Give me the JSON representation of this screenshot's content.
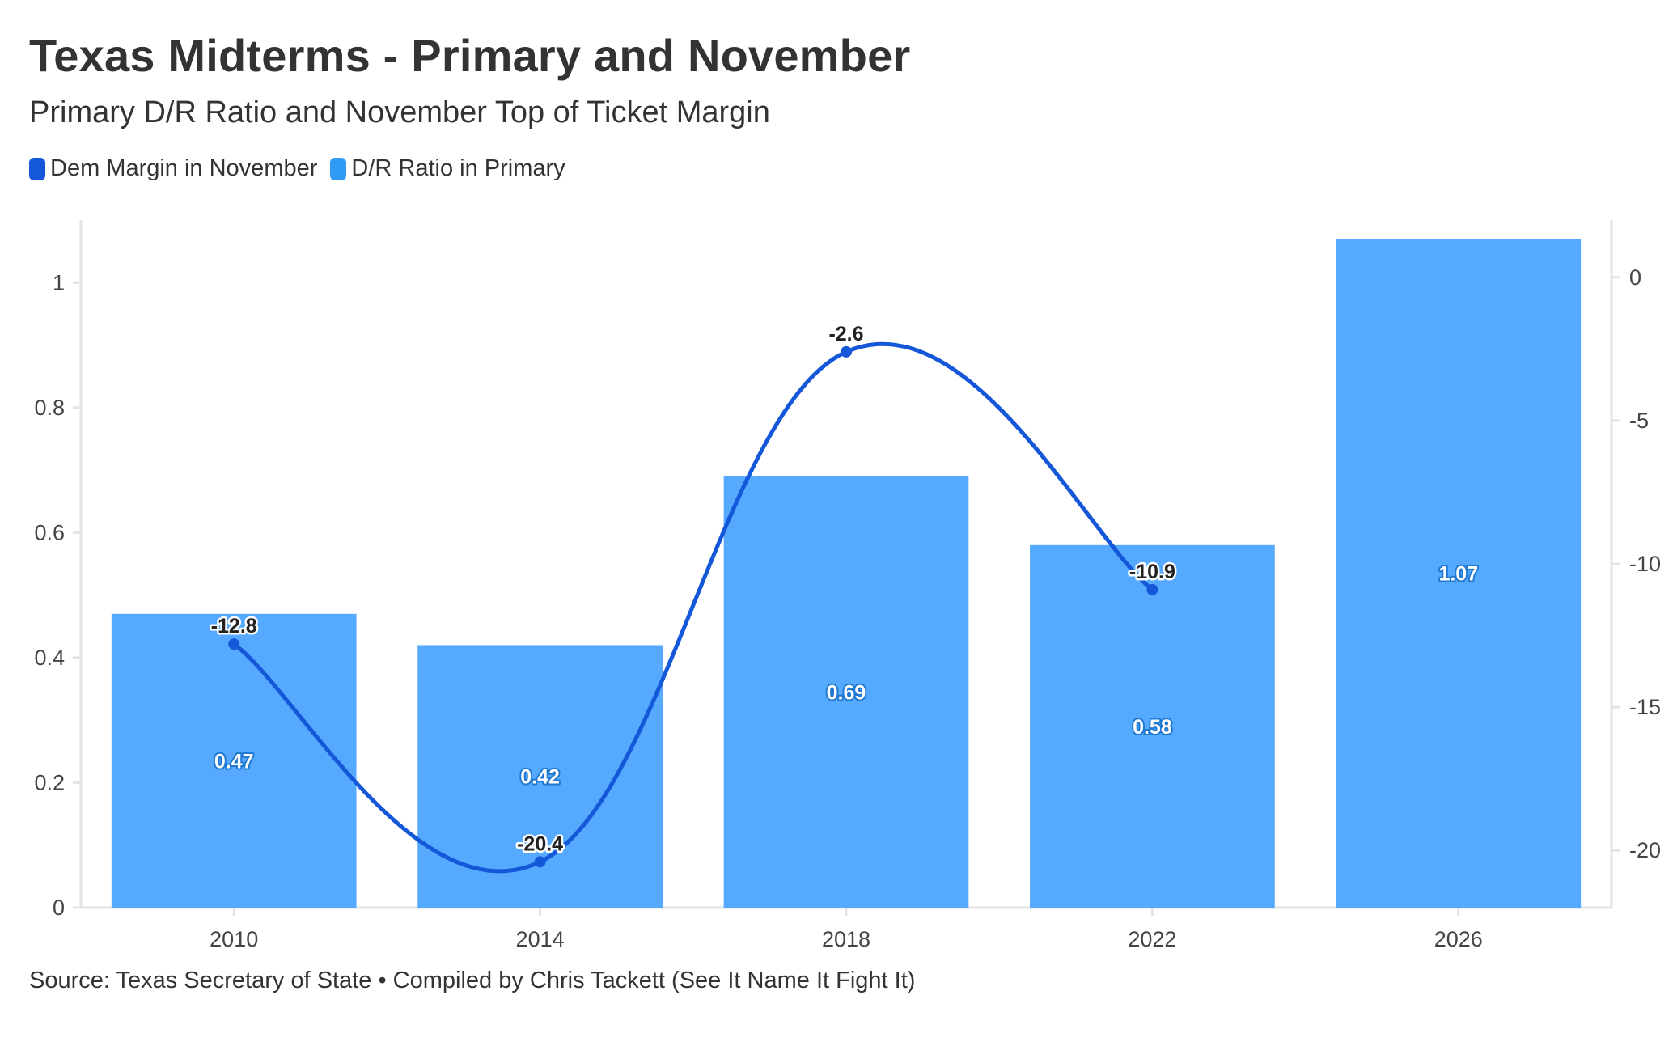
{
  "title": "Texas Midterms - Primary and November",
  "subtitle": "Primary D/R Ratio and November Top of Ticket Margin",
  "source": "Source: Texas Secretary of State • Compiled by Chris Tackett (See It Name It Fight It)",
  "legend": [
    {
      "label": "Dem Margin in November",
      "color": "#1557d9"
    },
    {
      "label": "D/R Ratio in Primary",
      "color": "#2f9bf5"
    }
  ],
  "colors": {
    "bar": "#55aaff",
    "line": "#1557d9",
    "axis": "#e3e3e3"
  },
  "chart_data": {
    "type": "bar",
    "categories": [
      "2010",
      "2014",
      "2018",
      "2022",
      "2026"
    ],
    "series": [
      {
        "name": "D/R Ratio in Primary",
        "type": "bar",
        "axis": "left",
        "values": [
          0.47,
          0.42,
          0.69,
          0.58,
          1.07
        ],
        "labels": [
          "0.47",
          "0.42",
          "0.69",
          "0.58",
          "1.07"
        ]
      },
      {
        "name": "Dem Margin in November",
        "type": "line",
        "axis": "right",
        "values": [
          -12.8,
          -20.4,
          -2.6,
          -10.9,
          null
        ],
        "labels": [
          "-12.8",
          "-20.4",
          "-2.6",
          "-10.9",
          ""
        ]
      }
    ],
    "y_left": {
      "ticks": [
        0,
        0.2,
        0.4,
        0.6,
        0.8,
        1
      ],
      "tick_labels": [
        "0",
        "0.2",
        "0.4",
        "0.6",
        "0.8",
        "1"
      ],
      "range": [
        0,
        1.1
      ]
    },
    "y_right": {
      "ticks": [
        0,
        -5,
        -10,
        -15,
        -20
      ],
      "tick_labels": [
        "0",
        "-5",
        "-10",
        "-15",
        "-20"
      ],
      "range": [
        -22,
        2
      ]
    },
    "grid": false,
    "legend_position": "top-left"
  }
}
